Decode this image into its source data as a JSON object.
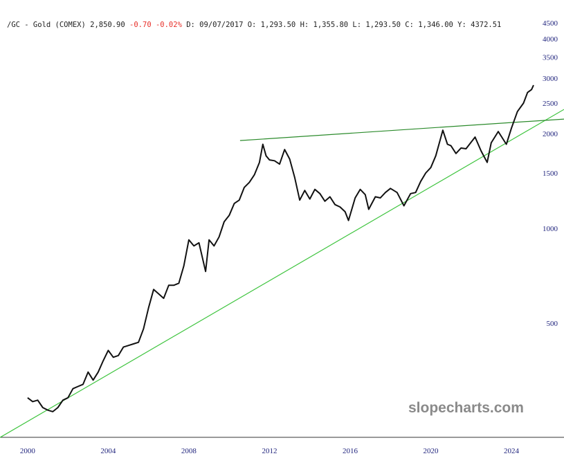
{
  "chart_data": {
    "type": "line",
    "header": {
      "symbol": "/GC - Gold (COMEX)",
      "last": "2,850.90",
      "change": "-0.70 -0.02%",
      "ohlc": "D: 09/07/2017 O: 1,293.50 H: 1,355.80 L: 1,293.50 C: 1,346.00 Y:  4372.51",
      "change_color": "#e8302a"
    },
    "watermark": "slopecharts.com",
    "log_scale": true,
    "xlim": [
      1998.63,
      2026.61
    ],
    "ylim": [
      215,
      4800
    ],
    "xticks": [
      2000,
      2004,
      2008,
      2012,
      2016,
      2020,
      2024
    ],
    "yticks": [
      500,
      1000,
      1500,
      2000,
      2500,
      3000,
      3500,
      4000,
      4500
    ],
    "x": [
      2000.0,
      2000.25,
      2000.5,
      2000.75,
      2001.0,
      2001.25,
      2001.5,
      2001.75,
      2002.0,
      2002.25,
      2002.5,
      2002.75,
      2003.0,
      2003.25,
      2003.5,
      2003.75,
      2004.0,
      2004.25,
      2004.5,
      2004.75,
      2005.0,
      2005.25,
      2005.5,
      2005.75,
      2006.0,
      2006.25,
      2006.5,
      2006.75,
      2007.0,
      2007.25,
      2007.5,
      2007.75,
      2008.0,
      2008.25,
      2008.5,
      2008.83,
      2009.0,
      2009.25,
      2009.5,
      2009.75,
      2010.0,
      2010.25,
      2010.5,
      2010.75,
      2011.0,
      2011.25,
      2011.5,
      2011.67,
      2011.83,
      2012.0,
      2012.25,
      2012.5,
      2012.75,
      2013.0,
      2013.25,
      2013.5,
      2013.75,
      2014.0,
      2014.25,
      2014.5,
      2014.75,
      2015.0,
      2015.25,
      2015.5,
      2015.75,
      2015.92,
      2016.25,
      2016.5,
      2016.75,
      2016.92,
      2017.25,
      2017.5,
      2017.75,
      2018.0,
      2018.33,
      2018.67,
      2019.0,
      2019.25,
      2019.5,
      2019.75,
      2020.0,
      2020.25,
      2020.6,
      2020.83,
      2021.0,
      2021.25,
      2021.5,
      2021.75,
      2022.2,
      2022.5,
      2022.8,
      2023.0,
      2023.35,
      2023.75,
      2024.0,
      2024.3,
      2024.6,
      2024.8,
      2025.0,
      2025.1
    ],
    "series": [
      {
        "name": "Gold",
        "color": "#111111",
        "values": [
          290,
          282,
          285,
          270,
          265,
          262,
          270,
          285,
          290,
          310,
          315,
          320,
          350,
          330,
          350,
          380,
          410,
          390,
          395,
          420,
          425,
          430,
          435,
          480,
          560,
          640,
          620,
          600,
          660,
          660,
          670,
          760,
          920,
          880,
          900,
          730,
          920,
          880,
          940,
          1050,
          1100,
          1200,
          1230,
          1350,
          1400,
          1480,
          1620,
          1850,
          1700,
          1650,
          1640,
          1600,
          1780,
          1660,
          1450,
          1230,
          1320,
          1240,
          1330,
          1290,
          1220,
          1260,
          1190,
          1170,
          1130,
          1060,
          1250,
          1330,
          1280,
          1150,
          1260,
          1250,
          1300,
          1340,
          1300,
          1180,
          1290,
          1300,
          1410,
          1500,
          1560,
          1700,
          2050,
          1850,
          1830,
          1730,
          1800,
          1790,
          1950,
          1760,
          1620,
          1870,
          2030,
          1850,
          2080,
          2350,
          2500,
          2700,
          2760,
          2850
        ]
      }
    ],
    "trendlines": [
      {
        "color": "#3ec43e",
        "x": [
          1998.63,
          2026.61
        ],
        "y": [
          217,
          2387
        ]
      },
      {
        "color": "#2a8a2a",
        "x": [
          2010.54,
          2026.61
        ],
        "y": [
          1901,
          2224
        ]
      }
    ]
  }
}
